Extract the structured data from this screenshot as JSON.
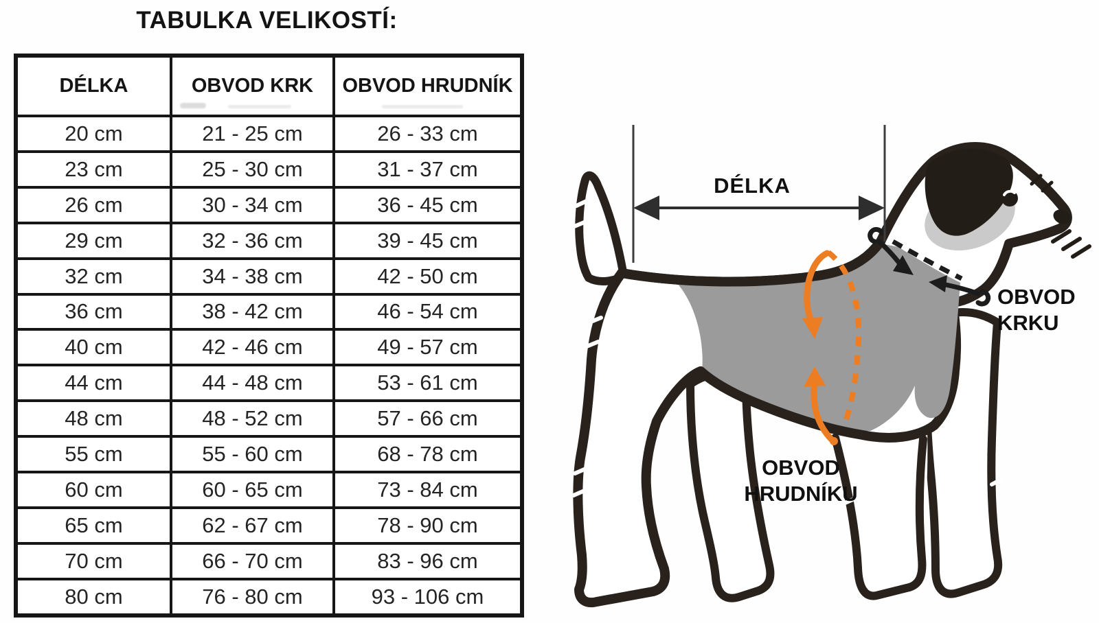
{
  "page_title": "TABULKA VELIKOSTÍ:",
  "chart_data": {
    "type": "table",
    "title": "TABULKA VELIKOSTÍ:",
    "columns": [
      "DÉLKA",
      "OBVOD KRK",
      "OBVOD HRUDNÍK"
    ],
    "rows": [
      [
        "20 cm",
        "21 - 25 cm",
        "26 - 33 cm"
      ],
      [
        "23 cm",
        "25 - 30 cm",
        "31 - 37 cm"
      ],
      [
        "26 cm",
        "30 - 34 cm",
        "36 - 45 cm"
      ],
      [
        "29 cm",
        "32 - 36 cm",
        "39 - 45 cm"
      ],
      [
        "32 cm",
        "34 - 38 cm",
        "42 - 50 cm"
      ],
      [
        "36 cm",
        "38 - 42 cm",
        "46 - 54 cm"
      ],
      [
        "40 cm",
        "42 - 46 cm",
        "49 - 57 cm"
      ],
      [
        "44 cm",
        "44 - 48 cm",
        "53 - 61 cm"
      ],
      [
        "48 cm",
        "48 - 52 cm",
        "57 - 66 cm"
      ],
      [
        "55 cm",
        "55 - 60 cm",
        "68 - 78 cm"
      ],
      [
        "60 cm",
        "60 - 65 cm",
        "73 - 84 cm"
      ],
      [
        "65 cm",
        "62 - 67 cm",
        "78 - 90 cm"
      ],
      [
        "70 cm",
        "66 - 70 cm",
        "83 - 96 cm"
      ],
      [
        "80 cm",
        "76 - 80 cm",
        "93 - 106 cm"
      ]
    ]
  },
  "diagram": {
    "labels": {
      "length": "DÉLKA",
      "neck_line1": "OBVOD",
      "neck_line2": "KRKU",
      "chest_line1": "OBVOD",
      "chest_line2": "HRUDNÍKU"
    },
    "colors": {
      "outline": "#29221c",
      "vest_gray": "#9b9b9b",
      "head_patch_gray": "#cacaca",
      "accent_orange": "#ed7d23",
      "measure_line": "#3d3d3d"
    }
  }
}
